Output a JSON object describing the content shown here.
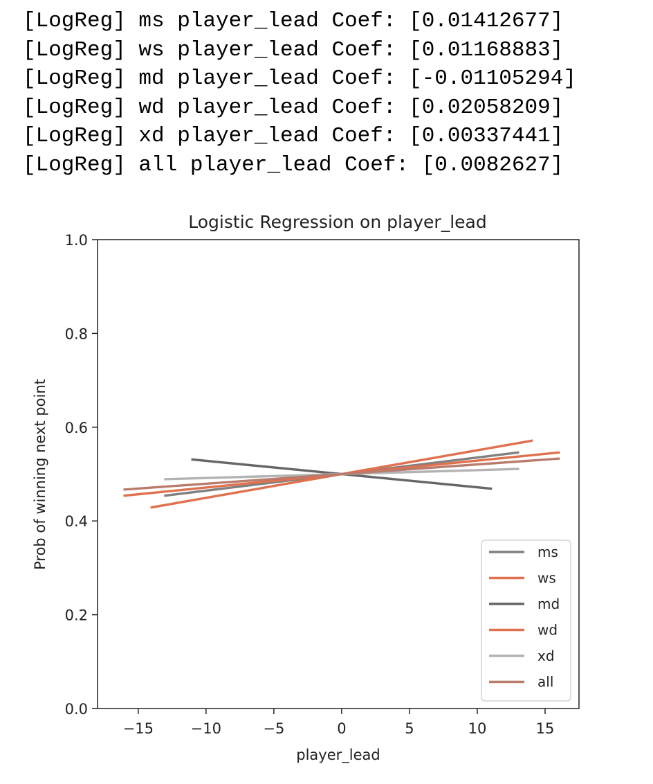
{
  "console": {
    "lines": [
      "[LogReg] ms player_lead Coef: [0.01412677]",
      "[LogReg] ws player_lead Coef: [0.01168883]",
      "[LogReg] md player_lead Coef: [-0.01105294]",
      "[LogReg] wd player_lead Coef: [0.02058209]",
      "[LogReg] xd player_lead Coef: [0.00337441]",
      "[LogReg] all player_lead Coef: [0.0082627]"
    ]
  },
  "chart_data": {
    "type": "line",
    "title": "Logistic Regression on player_lead",
    "xlabel": "player_lead",
    "ylabel": "Prob of winning next point",
    "xlim": [
      -18,
      17.5
    ],
    "ylim": [
      0.0,
      1.0
    ],
    "xticks": [
      -15,
      -10,
      -5,
      0,
      5,
      10,
      15
    ],
    "xtick_labels": [
      "−15",
      "−10",
      "−5",
      "0",
      "5",
      "10",
      "15"
    ],
    "yticks": [
      0.0,
      0.2,
      0.4,
      0.6,
      0.8,
      1.0
    ],
    "ytick_labels": [
      "0.0",
      "0.2",
      "0.4",
      "0.6",
      "0.8",
      "1.0"
    ],
    "grid": false,
    "legend_position": "lower-right",
    "series": [
      {
        "name": "ms",
        "color": "#808080",
        "x": [
          -13,
          13
        ],
        "y": [
          0.454,
          0.546
        ]
      },
      {
        "name": "ws",
        "color": "#e0714f",
        "x": [
          -16,
          16
        ],
        "y": [
          0.454,
          0.546
        ]
      },
      {
        "name": "md",
        "color": "#666666",
        "x": [
          -11,
          11
        ],
        "y": [
          0.531,
          0.469
        ]
      },
      {
        "name": "wd",
        "color": "#e0714f",
        "x": [
          -14,
          14
        ],
        "y": [
          0.429,
          0.571
        ]
      },
      {
        "name": "xd",
        "color": "#b3b3b3",
        "x": [
          -13,
          13
        ],
        "y": [
          0.489,
          0.511
        ]
      },
      {
        "name": "all",
        "color": "#b87b6c",
        "x": [
          -16,
          16
        ],
        "y": [
          0.467,
          0.533
        ]
      }
    ]
  }
}
